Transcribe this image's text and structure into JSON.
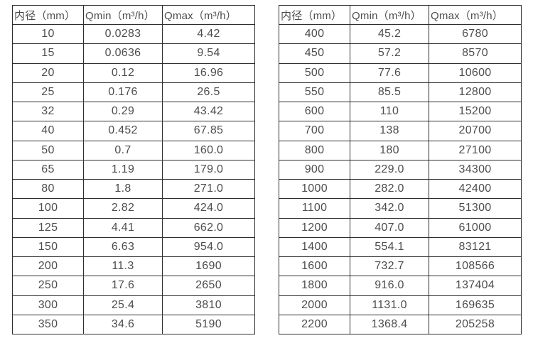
{
  "page": {
    "background_color": "#ffffff",
    "text_color": "#4d4d4d",
    "border_color": "#2e2e2e"
  },
  "chart_data": {
    "type": "table",
    "title": "",
    "tables": [
      {
        "name": "flow-range-table-small-diameters",
        "headers": [
          "内径（mm）",
          "Qmin（m³/h）",
          "Qmax（m³/h）"
        ],
        "rows": [
          [
            "10",
            "0.0283",
            "4.42"
          ],
          [
            "15",
            "0.0636",
            "9.54"
          ],
          [
            "20",
            "0.12",
            "16.96"
          ],
          [
            "25",
            "0.176",
            "26.5"
          ],
          [
            "32",
            "0.29",
            "43.42"
          ],
          [
            "40",
            "0.452",
            "67.85"
          ],
          [
            "50",
            "0.7",
            "160.0"
          ],
          [
            "65",
            "1.19",
            "179.0"
          ],
          [
            "80",
            "1.8",
            "271.0"
          ],
          [
            "100",
            "2.82",
            "424.0"
          ],
          [
            "125",
            "4.41",
            "662.0"
          ],
          [
            "150",
            "6.63",
            "954.0"
          ],
          [
            "200",
            "11.3",
            "1690"
          ],
          [
            "250",
            "17.6",
            "2650"
          ],
          [
            "300",
            "25.4",
            "3810"
          ],
          [
            "350",
            "34.6",
            "5190"
          ]
        ]
      },
      {
        "name": "flow-range-table-large-diameters",
        "headers": [
          "内径（mm）",
          "Qmin（m³/h）",
          "Qmax（m³/h）"
        ],
        "rows": [
          [
            "400",
            "45.2",
            "6780"
          ],
          [
            "450",
            "57.2",
            "8570"
          ],
          [
            "500",
            "77.6",
            "10600"
          ],
          [
            "550",
            "85.5",
            "12800"
          ],
          [
            "600",
            "110",
            "15200"
          ],
          [
            "700",
            "138",
            "20700"
          ],
          [
            "800",
            "180",
            "27100"
          ],
          [
            "900",
            "229.0",
            "34300"
          ],
          [
            "1000",
            "282.0",
            "42400"
          ],
          [
            "1100",
            "342.0",
            "51300"
          ],
          [
            "1200",
            "407.0",
            "61000"
          ],
          [
            "1400",
            "554.1",
            "83121"
          ],
          [
            "1600",
            "732.7",
            "108566"
          ],
          [
            "1800",
            "916.0",
            "137404"
          ],
          [
            "2000",
            "1131.0",
            "169635"
          ],
          [
            "2200",
            "1368.4",
            "205258"
          ]
        ]
      }
    ]
  }
}
